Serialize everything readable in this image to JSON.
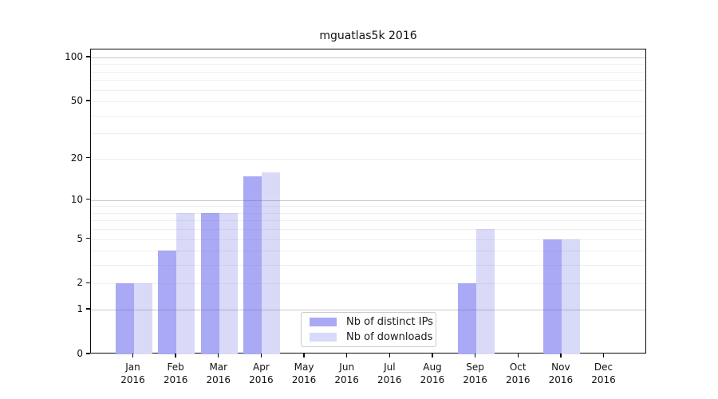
{
  "chart_data": {
    "type": "bar",
    "title": "mguatlas5k 2016",
    "categories": [
      {
        "month": "Jan",
        "year": "2016"
      },
      {
        "month": "Feb",
        "year": "2016"
      },
      {
        "month": "Mar",
        "year": "2016"
      },
      {
        "month": "Apr",
        "year": "2016"
      },
      {
        "month": "May",
        "year": "2016"
      },
      {
        "month": "Jun",
        "year": "2016"
      },
      {
        "month": "Jul",
        "year": "2016"
      },
      {
        "month": "Aug",
        "year": "2016"
      },
      {
        "month": "Sep",
        "year": "2016"
      },
      {
        "month": "Oct",
        "year": "2016"
      },
      {
        "month": "Nov",
        "year": "2016"
      },
      {
        "month": "Dec",
        "year": "2016"
      }
    ],
    "series": [
      {
        "name": "Nb of distinct IPs",
        "color": "#a9a9f5",
        "values": [
          2,
          4,
          8,
          15,
          0,
          0,
          0,
          0,
          2,
          0,
          5,
          0
        ]
      },
      {
        "name": "Nb of downloads",
        "color": "#d9d9f8",
        "values": [
          2,
          8,
          8,
          16,
          0,
          0,
          0,
          0,
          6,
          0,
          5,
          0
        ]
      }
    ],
    "yscale": "log1p",
    "yticks": [
      0,
      1,
      2,
      5,
      10,
      20,
      50,
      100
    ],
    "ylim": [
      0,
      113
    ],
    "grid": {
      "major_lines": [
        1,
        10,
        100
      ],
      "minor_lines": [
        2,
        3,
        4,
        5,
        6,
        7,
        8,
        9,
        20,
        30,
        40,
        50,
        60,
        70,
        80,
        90
      ]
    },
    "legend_position": "lower center",
    "colors": {
      "major_grid": "#c6c6c6",
      "minor_grid": "#ececec",
      "spine": "#0a0a0a"
    }
  }
}
